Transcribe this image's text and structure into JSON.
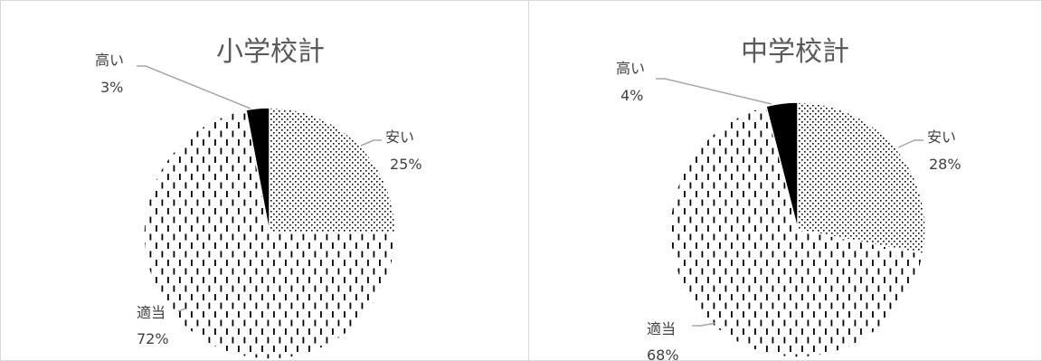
{
  "chart_data": [
    {
      "type": "pie",
      "title": "小学校計",
      "slices": [
        {
          "category": "安い",
          "value": 25,
          "label": "25%",
          "pattern": "dots"
        },
        {
          "category": "適当",
          "value": 72,
          "label": "72%",
          "pattern": "dashes"
        },
        {
          "category": "高い",
          "value": 3,
          "label": "3%",
          "pattern": "solid"
        }
      ]
    },
    {
      "type": "pie",
      "title": "中学校計",
      "slices": [
        {
          "category": "安い",
          "value": 28,
          "label": "28%",
          "pattern": "dots"
        },
        {
          "category": "適当",
          "value": 68,
          "label": "68%",
          "pattern": "dashes"
        },
        {
          "category": "高い",
          "value": 4,
          "label": "4%",
          "pattern": "solid"
        }
      ]
    }
  ]
}
